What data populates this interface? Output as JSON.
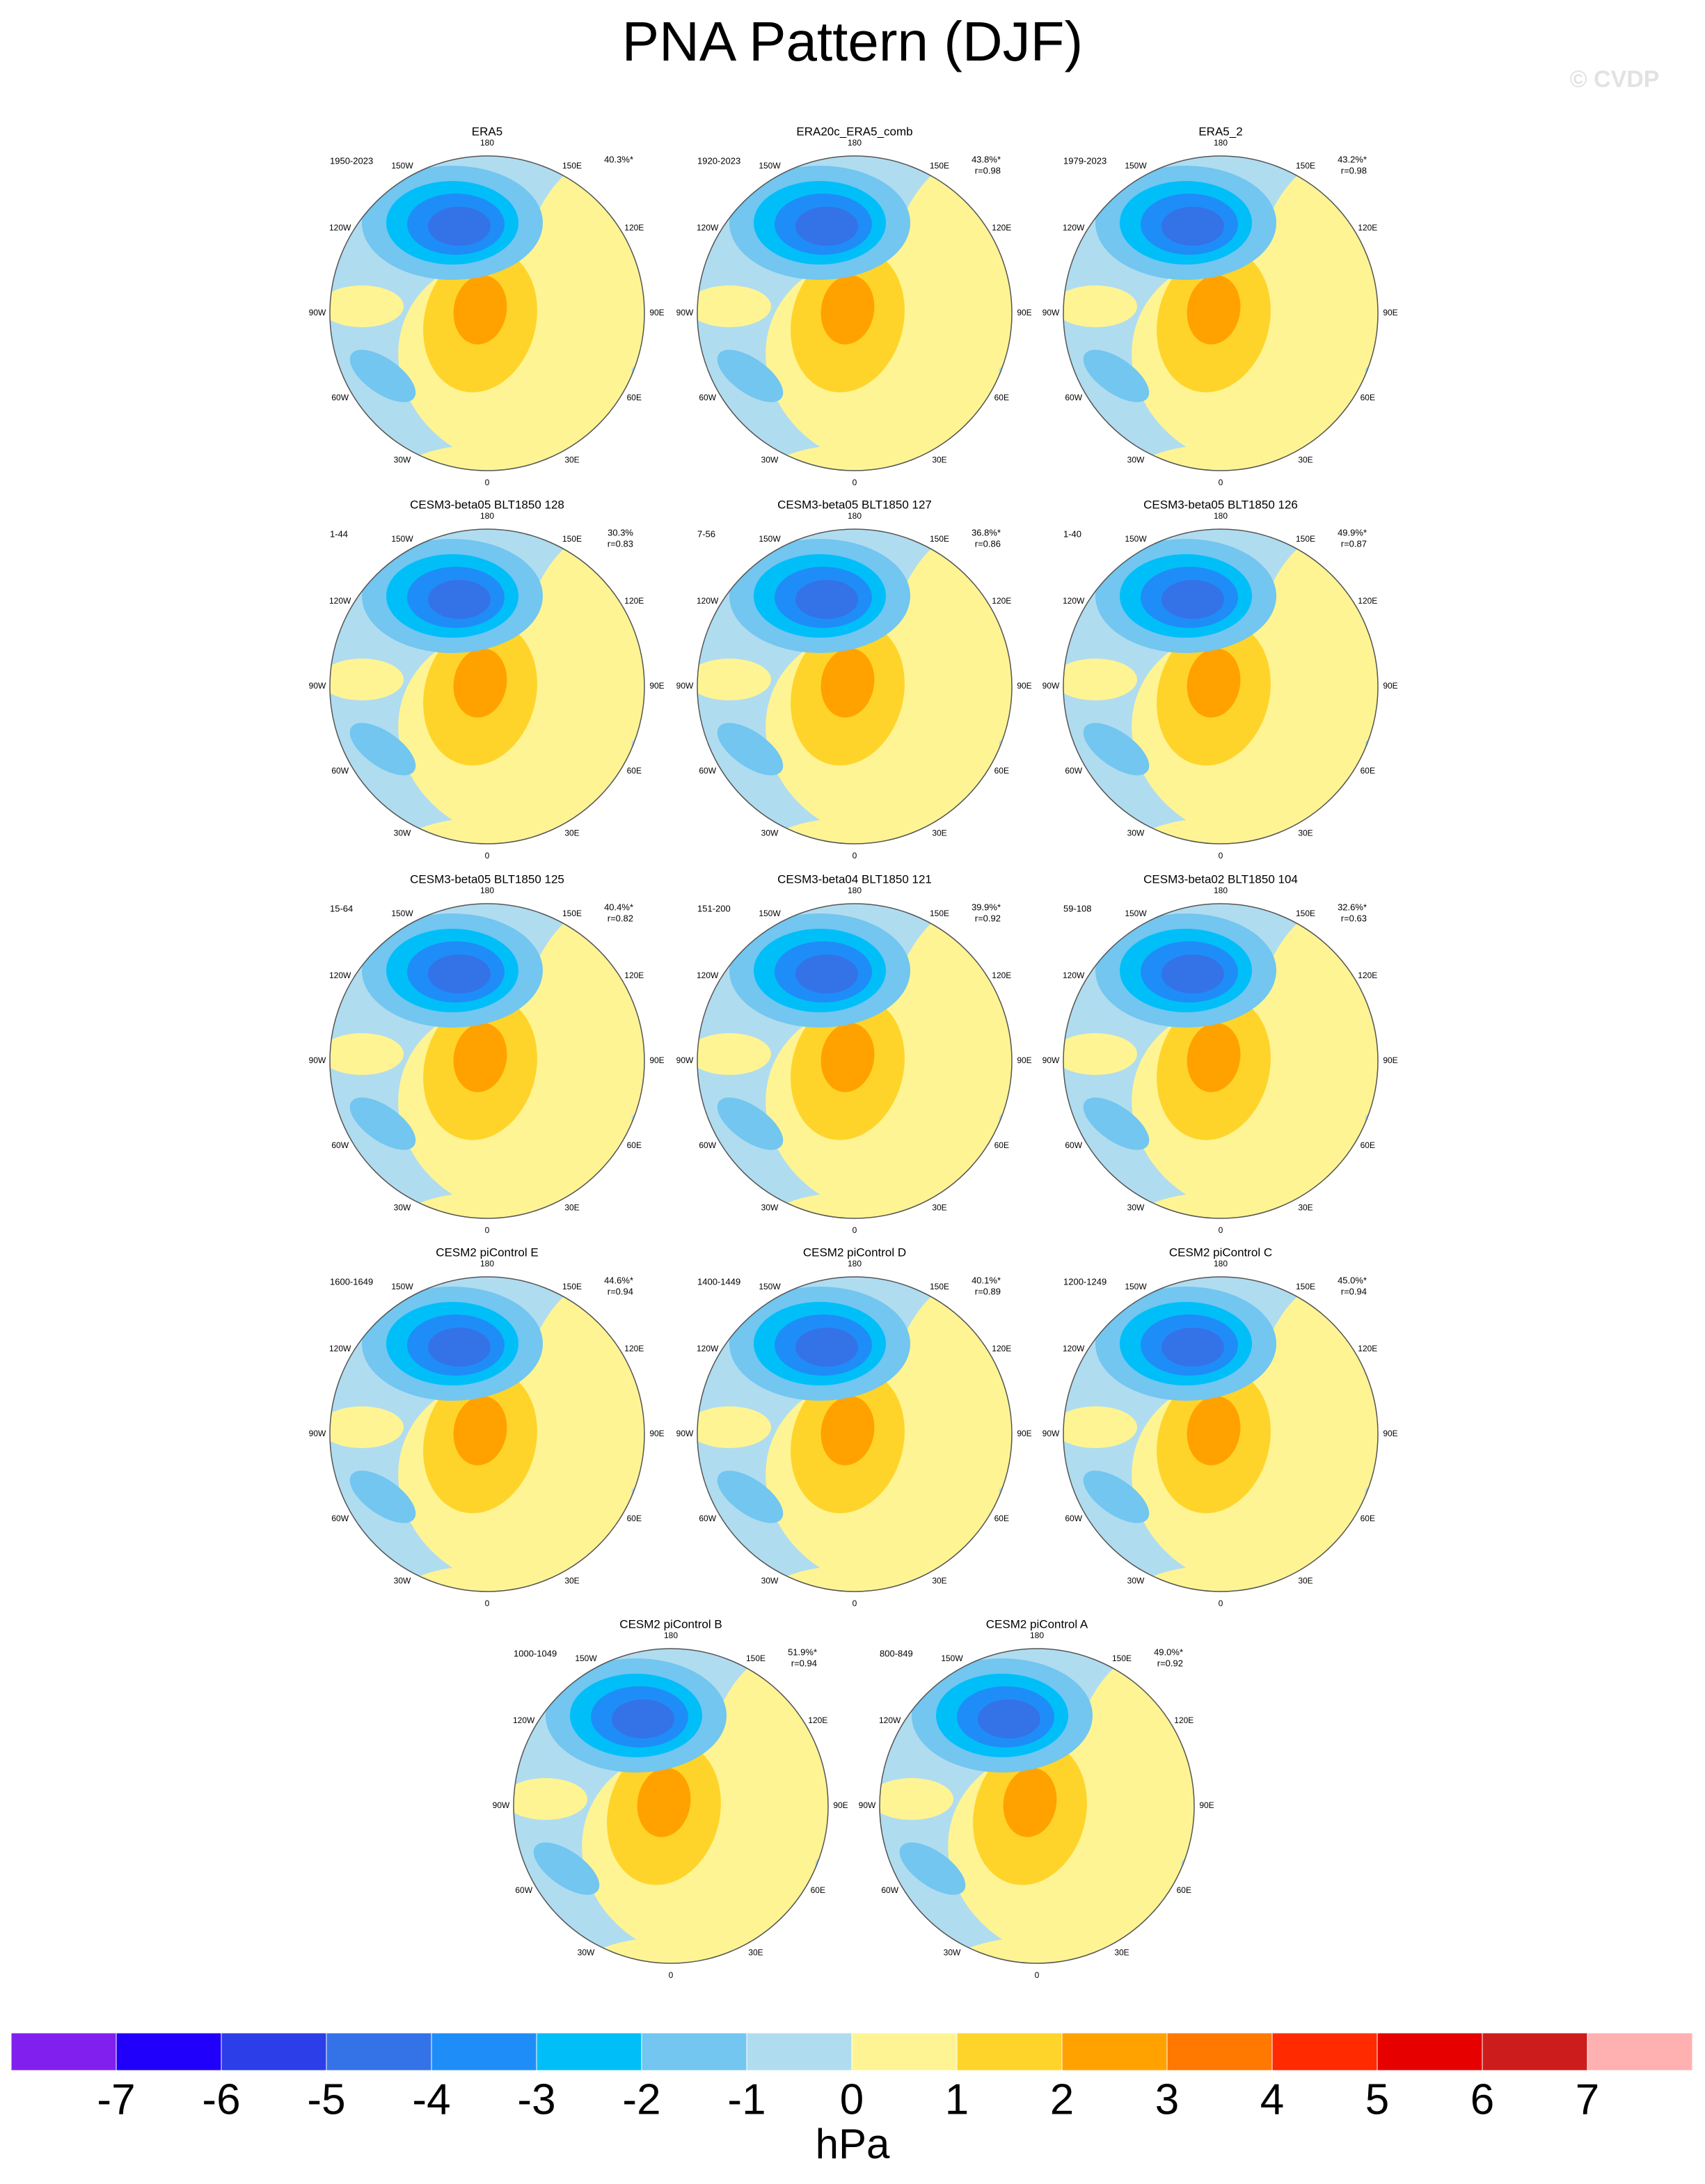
{
  "title": "PNA Pattern (DJF)",
  "watermark": "© CVDP",
  "lon_labels": [
    "180",
    "150E",
    "120E",
    "90E",
    "60E",
    "30E",
    "0",
    "30W",
    "60W",
    "90W",
    "120W",
    "150W"
  ],
  "panels": [
    {
      "name": "ERA5",
      "period": "1950-2023",
      "variance": "40.3%*"
    },
    {
      "name": "ERA20c_ERA5_comb",
      "period": "1920-2023",
      "variance": "43.8%*",
      "r": "r=0.98"
    },
    {
      "name": "ERA5_2",
      "period": "1979-2023",
      "variance": "43.2%*",
      "r": "r=0.98"
    },
    {
      "name": "CESM3-beta05 BLT1850 128",
      "period": "1-44",
      "variance": "30.3%",
      "r": "r=0.83"
    },
    {
      "name": "CESM3-beta05 BLT1850 127",
      "period": "7-56",
      "variance": "36.8%*",
      "r": "r=0.86"
    },
    {
      "name": "CESM3-beta05 BLT1850 126",
      "period": "1-40",
      "variance": "49.9%*",
      "r": "r=0.87"
    },
    {
      "name": "CESM3-beta05 BLT1850 125",
      "period": "15-64",
      "variance": "40.4%*",
      "r": "r=0.82"
    },
    {
      "name": "CESM3-beta04 BLT1850 121",
      "period": "151-200",
      "variance": "39.9%*",
      "r": "r=0.92"
    },
    {
      "name": "CESM3-beta02 BLT1850 104",
      "period": "59-108",
      "variance": "32.6%*",
      "r": "r=0.63"
    },
    {
      "name": "CESM2 piControl E",
      "period": "1600-1649",
      "variance": "44.6%*",
      "r": "r=0.94"
    },
    {
      "name": "CESM2 piControl D",
      "period": "1400-1449",
      "variance": "40.1%*",
      "r": "r=0.89"
    },
    {
      "name": "CESM2 piControl C",
      "period": "1200-1249",
      "variance": "45.0%*",
      "r": "r=0.94"
    },
    {
      "name": "CESM2 piControl B",
      "period": "1000-1049",
      "variance": "51.9%*",
      "r": "r=0.94"
    },
    {
      "name": "CESM2 piControl A",
      "period": "800-849",
      "variance": "49.0%*",
      "r": "r=0.92"
    }
  ],
  "colorbar": {
    "colors": [
      "#8120ee",
      "#2000fb",
      "#2c3ee8",
      "#3472e8",
      "#1f8df8",
      "#00bff8",
      "#72c6f0",
      "#b0dcf0",
      "#fef494",
      "#ffd42a",
      "#ffa200",
      "#ff7800",
      "#ff2a00",
      "#e60000",
      "#cd1c1c",
      "#ffb0b0"
    ],
    "ticks": [
      -7,
      -6,
      -5,
      -4,
      -3,
      -2,
      -1,
      0,
      1,
      2,
      3,
      4,
      5,
      6,
      7
    ],
    "unit": "hPa"
  }
}
